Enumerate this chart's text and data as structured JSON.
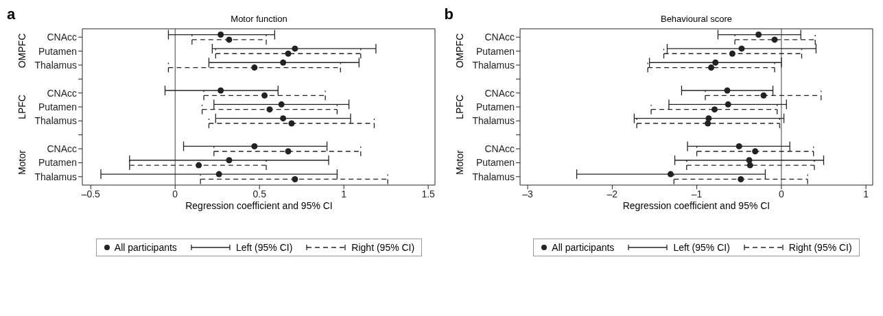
{
  "chart_data": [
    {
      "type": "scatter",
      "orientation": "horizontal",
      "title": "Motor function",
      "xlabel": "Regression coefficient and 95% CI",
      "annotations": [
        "a",
        "OMPFC",
        "LPFC",
        "Motor"
      ],
      "legend_title": "All participants",
      "legend": "bottom",
      "marker": "circle",
      "categories": [
        "CNAcc",
        "Putamen",
        "Thalamus",
        null,
        "CNAcc",
        "Putamen",
        "Thalamus",
        null,
        "CNAcc",
        "Putamen",
        "Thalamus"
      ],
      "xlim": [
        -0.55,
        1.54
      ],
      "xticks": [
        {
          "value": -0.5,
          "label": "–0.5"
        },
        0,
        0.5,
        1,
        1.5
      ],
      "ref_lines": [
        {
          "axis": "x",
          "value": 0,
          "color": "#444444"
        }
      ],
      "series": [
        {
          "name": "Left (95% CI)",
          "color": "#222222",
          "line_style": "solid",
          "values": [
            0.27,
            0.71,
            0.64,
            null,
            0.27,
            0.63,
            0.64,
            null,
            0.47,
            0.32,
            0.26
          ],
          "errors": [
            [
              -0.04,
              0.59
            ],
            [
              0.22,
              1.19
            ],
            [
              0.2,
              1.09
            ],
            null,
            [
              -0.06,
              0.61
            ],
            [
              0.23,
              1.03
            ],
            [
              0.24,
              1.04
            ],
            null,
            [
              0.05,
              0.9
            ],
            [
              -0.27,
              0.91
            ],
            [
              -0.44,
              0.96
            ]
          ]
        },
        {
          "name": "Right (95% CI)",
          "color": "#222222",
          "line_style": "dashed",
          "values": [
            0.32,
            0.67,
            0.47,
            null,
            0.53,
            0.56,
            0.69,
            null,
            0.67,
            0.14,
            0.71
          ],
          "errors": [
            [
              0.1,
              0.54
            ],
            [
              0.24,
              1.1
            ],
            [
              -0.04,
              0.98
            ],
            null,
            [
              0.17,
              0.89
            ],
            [
              0.16,
              0.96
            ],
            [
              0.2,
              1.18
            ],
            null,
            [
              0.23,
              1.1
            ],
            [
              -0.27,
              0.54
            ],
            [
              0.15,
              1.26
            ]
          ]
        }
      ]
    },
    {
      "type": "scatter",
      "orientation": "horizontal",
      "title": "Behavioural score",
      "xlabel": "Regression coefficient and 95% CI",
      "annotations": [
        "b",
        "OMPFC",
        "LPFC",
        "Motor"
      ],
      "legend_title": "All participants",
      "legend": "bottom",
      "marker": "circle",
      "categories": [
        "CNAcc",
        "Putamen",
        "Thalamus",
        null,
        "CNAcc",
        "Putamen",
        "Thalamus",
        null,
        "CNAcc",
        "Putamen",
        "Thalamus"
      ],
      "xlim": [
        -3.09,
        1.08
      ],
      "xticks": [
        {
          "value": -3,
          "label": "–3"
        },
        {
          "value": -2,
          "label": "–2"
        },
        {
          "value": -1,
          "label": "–1"
        },
        0,
        1
      ],
      "ref_lines": [
        {
          "axis": "x",
          "value": 0,
          "color": "#444444"
        }
      ],
      "series": [
        {
          "name": "Left (95% CI)",
          "color": "#222222",
          "line_style": "solid",
          "values": [
            -0.27,
            -0.47,
            -0.78,
            null,
            -0.64,
            -0.63,
            -0.86,
            null,
            -0.5,
            -0.38,
            -1.31
          ],
          "errors": [
            [
              -0.75,
              0.23
            ],
            [
              -1.35,
              0.41
            ],
            [
              -1.56,
              0.0
            ],
            null,
            [
              -1.18,
              -0.1
            ],
            [
              -1.33,
              0.06
            ],
            [
              -1.74,
              0.03
            ],
            null,
            [
              -1.11,
              0.1
            ],
            [
              -1.26,
              0.5
            ],
            [
              -2.42,
              -0.19
            ]
          ]
        },
        {
          "name": "Right (95% CI)",
          "color": "#222222",
          "line_style": "dashed",
          "values": [
            -0.08,
            -0.58,
            -0.83,
            null,
            -0.21,
            -0.79,
            -0.87,
            null,
            -0.31,
            -0.37,
            -0.48
          ],
          "errors": [
            [
              -0.55,
              0.4
            ],
            [
              -1.39,
              0.24
            ],
            [
              -1.58,
              -0.08
            ],
            null,
            [
              -0.9,
              0.47
            ],
            [
              -1.54,
              -0.05
            ],
            [
              -1.71,
              -0.02
            ],
            null,
            [
              -1.0,
              0.38
            ],
            [
              -1.12,
              0.39
            ],
            [
              -1.27,
              0.31
            ]
          ]
        }
      ]
    }
  ]
}
